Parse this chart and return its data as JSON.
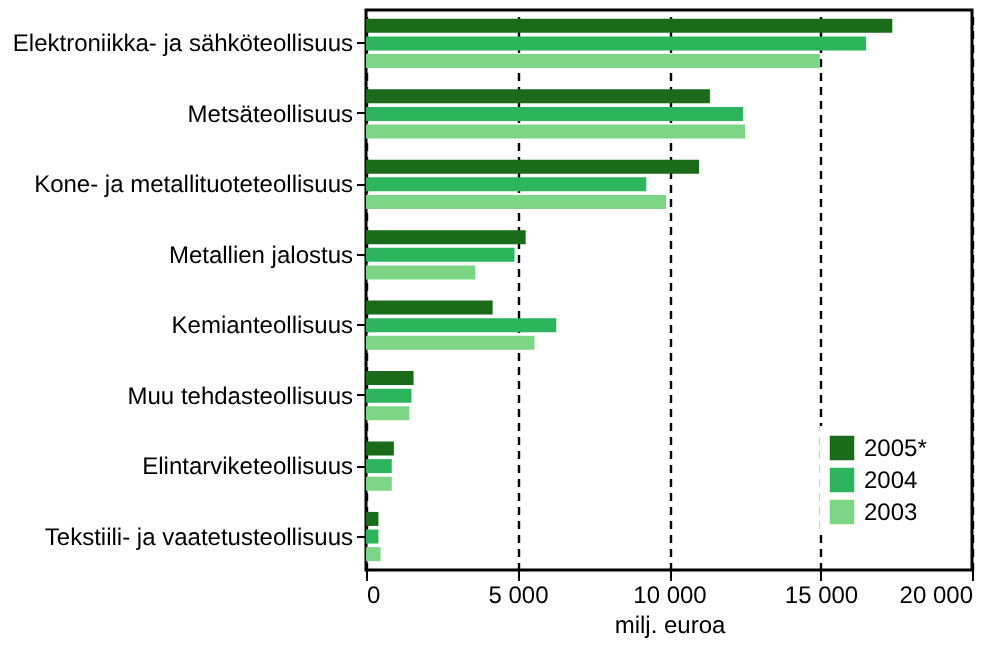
{
  "chart_data": {
    "type": "bar",
    "orientation": "horizontal",
    "xlabel": "milj. euroa",
    "categories": [
      "Elektroniikka- ja sähköteollisuus",
      "Metsäteollisuus",
      "Kone- ja metallituoteteollisuus",
      "Metallien jalostus",
      "Kemianteollisuus",
      "Muu tehdasteollisuus",
      "Elintarviketeollisuus",
      "Tekstiili- ja vaatetusteollisuus"
    ],
    "series": [
      {
        "name": "2005*",
        "color": "#1a6b1a",
        "values": [
          17370,
          11350,
          10990,
          5270,
          4180,
          1570,
          920,
          410
        ]
      },
      {
        "name": "2004",
        "color": "#2db55d",
        "values": [
          16500,
          12440,
          9250,
          4900,
          6280,
          1500,
          850,
          410
        ]
      },
      {
        "name": "2003",
        "color": "#7dd686",
        "values": [
          14980,
          12510,
          9900,
          3600,
          5560,
          1430,
          850,
          480
        ]
      }
    ],
    "xlim": [
      0,
      20000
    ],
    "xticks": [
      0,
      {
        "value": 5000,
        "label": "5 000"
      },
      {
        "value": 10000,
        "label": "10 000"
      },
      {
        "value": 15000,
        "label": "15 000"
      },
      {
        "value": 20000,
        "label": "20 000"
      }
    ],
    "grid": "x",
    "legend": "bottom right"
  }
}
